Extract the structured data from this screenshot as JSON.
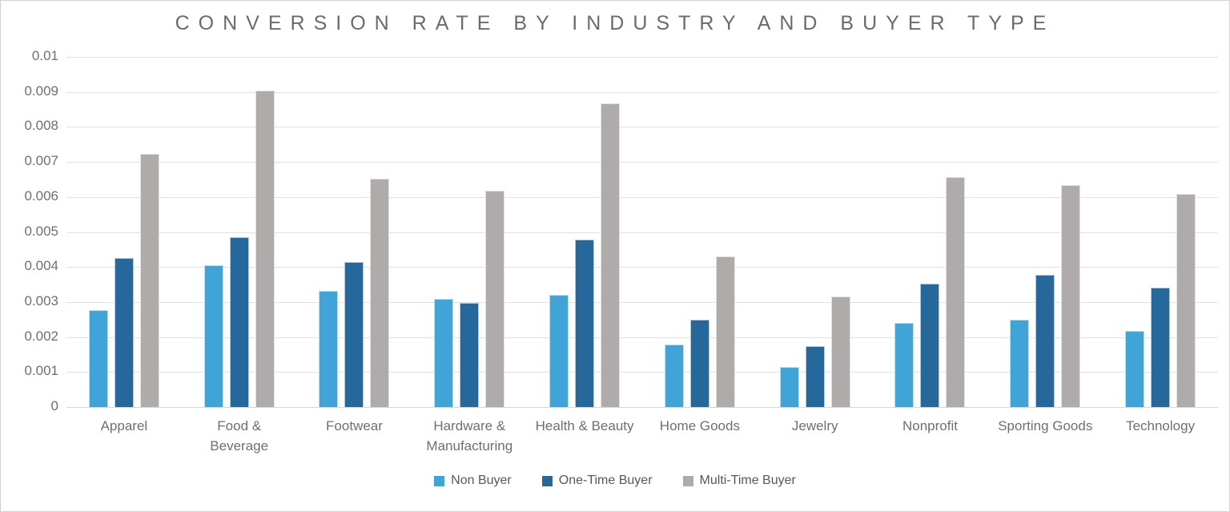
{
  "chart_data": {
    "type": "bar",
    "title": "CONVERSION RATE BY INDUSTRY AND BUYER TYPE",
    "categories": [
      "Apparel",
      "Food & Beverage",
      "Footwear",
      "Hardware & Manufacturing",
      "Health & Beauty",
      "Home Goods",
      "Jewelry",
      "Nonprofit",
      "Sporting Goods",
      "Technology"
    ],
    "series": [
      {
        "name": "Non Buyer",
        "color": "#41a4d8",
        "values": [
          0.00276,
          0.00404,
          0.00331,
          0.00308,
          0.00321,
          0.00178,
          0.00114,
          0.00241,
          0.00249,
          0.00218
        ]
      },
      {
        "name": "One-Time Buyer",
        "color": "#26689c",
        "values": [
          0.00425,
          0.00486,
          0.00414,
          0.00298,
          0.00478,
          0.00249,
          0.00174,
          0.00352,
          0.00378,
          0.0034
        ]
      },
      {
        "name": "Multi-Time Buyer",
        "color": "#aeabaa",
        "values": [
          0.00724,
          0.00904,
          0.00653,
          0.00619,
          0.00867,
          0.00431,
          0.00316,
          0.00656,
          0.00633,
          0.00609
        ]
      }
    ],
    "xlabel": "",
    "ylabel": "",
    "ylim": [
      0,
      0.01
    ],
    "yticks": [
      "0.01",
      "0.009",
      "0.008",
      "0.007",
      "0.006",
      "0.005",
      "0.004",
      "0.003",
      "0.002",
      "0.001",
      "0"
    ],
    "grid": true,
    "legend_position": "bottom"
  },
  "layout_colors": {
    "grid": "#e1e1e1",
    "axis_text": "#6f6f6f",
    "title_text": "#6b6b6b",
    "legend_text": "#55585a"
  }
}
